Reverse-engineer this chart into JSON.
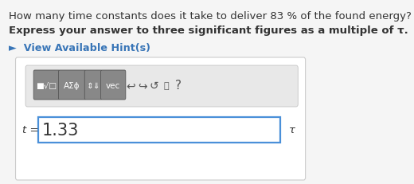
{
  "bg_color": "#f5f5f5",
  "panel_bg": "#ffffff",
  "question_line1": "How many time constants does it take to deliver 83 % of the found energy?",
  "question_line2": "Express your answer to three significant figures as a multiple of τ.",
  "hint_text": "►  View Available Hint(s)",
  "hint_color": "#3875b7",
  "input_label": "t =",
  "input_value": "1.33",
  "tau_symbol": "τ",
  "toolbar_bg": "#e8e8e8",
  "button_bg": "#888888",
  "button_fg": "#ffffff",
  "btn_label_1": "■√□",
  "btn_label_2": "AΣϕ",
  "btn_label_3": "⇕⇓",
  "btn_label_4": "vec",
  "icon_1": "↩",
  "icon_2": "↪",
  "icon_3": "↺",
  "icon_4": "⎗",
  "icon_5": "?",
  "input_border": "#4a90d9",
  "input_bg": "#ffffff",
  "panel_border": "#cccccc",
  "font_color": "#333333",
  "q1_fontsize": 9.5,
  "q2_fontsize": 9.5,
  "hint_fontsize": 9.2,
  "label_fontsize": 9.5,
  "value_fontsize": 15
}
